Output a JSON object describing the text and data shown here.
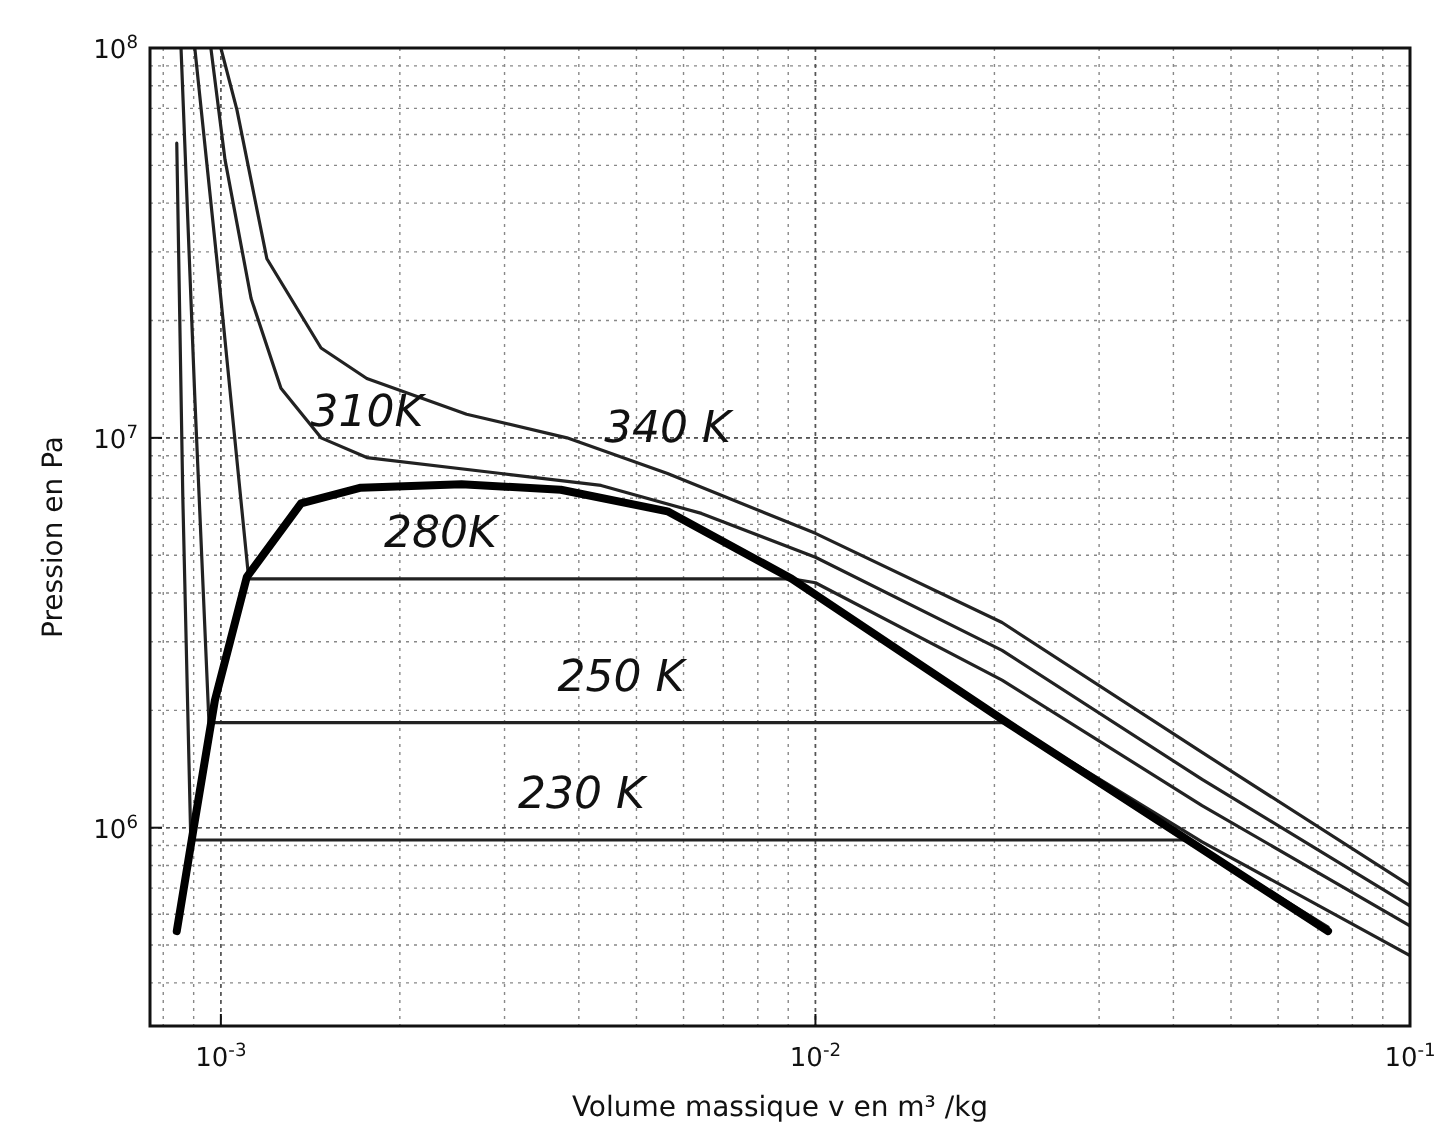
{
  "chart_data": {
    "type": "line",
    "xlabel": "Volume massique v en m³ /kg",
    "ylabel": "Pression en Pa",
    "log": "xy",
    "grid": true,
    "marker": "none",
    "line_style": "solid",
    "xlim": [
      0.00076,
      0.1
    ],
    "ylim": [
      310000,
      100000000
    ],
    "xticks": [
      {
        "value": 0.001,
        "label": "10$^{-3}$"
      },
      {
        "value": 0.01,
        "label": "10$^{-2}$"
      },
      {
        "value": 0.1,
        "label": "10$^{-1}$"
      }
    ],
    "yticks": [
      {
        "value": 1000000,
        "label": "10$^{6}$"
      },
      {
        "value": 10000000,
        "label": "10$^{7}$"
      },
      {
        "value": 100000000,
        "label": "10$^{8}$"
      }
    ],
    "series": [
      {
        "color": "#222222",
        "x": [
          0.001,
          0.001064,
          0.001195,
          0.001474,
          0.00176,
          0.00259,
          0.00382,
          0.00564,
          0.01,
          0.0206,
          0.0447,
          0.1
        ],
        "values": [
          100000000,
          69500000,
          28800000,
          17000000,
          14200000,
          11500000,
          10000000,
          8100000,
          5690000,
          3360000,
          1560000,
          710000
        ]
      },
      {
        "color": "#222222",
        "x": [
          0.000962,
          0.001016,
          0.001124,
          0.001262,
          0.001474,
          0.00176,
          0.00296,
          0.00436,
          0.00643,
          0.01,
          0.0206,
          0.0447,
          0.1
        ],
        "values": [
          100000000,
          51800000,
          22800000,
          13400000,
          10000000,
          8900000,
          8100000,
          7550000,
          6400000,
          4940000,
          2850000,
          1330000,
          630000
        ]
      },
      {
        "color": "#222222",
        "x": [
          0.000904,
          0.001,
          0.001114,
          0.00912,
          0.01,
          0.0206,
          0.0447,
          0.1
        ],
        "values": [
          100000000,
          22800000,
          4350000,
          4350000,
          4250000,
          2390000,
          1140000,
          560000
        ]
      },
      {
        "color": "#222222",
        "x": [
          0.000857,
          0.000904,
          0.000955,
          0.021,
          0.0447,
          0.1
        ],
        "values": [
          100000000,
          12700000,
          1860000,
          1860000,
          920000,
          470000
        ]
      },
      {
        "color": "#222222",
        "x": [
          0.000843,
          0.000863,
          0.00089,
          0.0423,
          0.0728
        ],
        "values": [
          57000000,
          7030000,
          930000,
          930000,
          556000
        ]
      },
      {
        "color": "#000000",
        "x": [
          0.000843,
          0.000904,
          0.000977,
          0.001106,
          0.001364,
          0.00172,
          0.00254,
          0.00373,
          0.00564,
          0.00912,
          0.021,
          0.0423,
          0.0728
        ],
        "values": [
          543000,
          1040000,
          2120000,
          4400000,
          6790000,
          7450000,
          7600000,
          7360000,
          6480000,
          4350000,
          1860000,
          930000,
          543000
        ]
      }
    ],
    "annotations": [
      {
        "text": "340 K",
        "x": 0.00564,
        "y": 8100000
      },
      {
        "text": "310K",
        "x": 0.00176,
        "y": 8900000
      },
      {
        "text": "280K",
        "x": 0.00234,
        "y": 4350000
      },
      {
        "text": "250 K",
        "x": 0.00471,
        "y": 1860000
      },
      {
        "text": "230 K",
        "x": 0.00404,
        "y": 930000
      }
    ]
  }
}
